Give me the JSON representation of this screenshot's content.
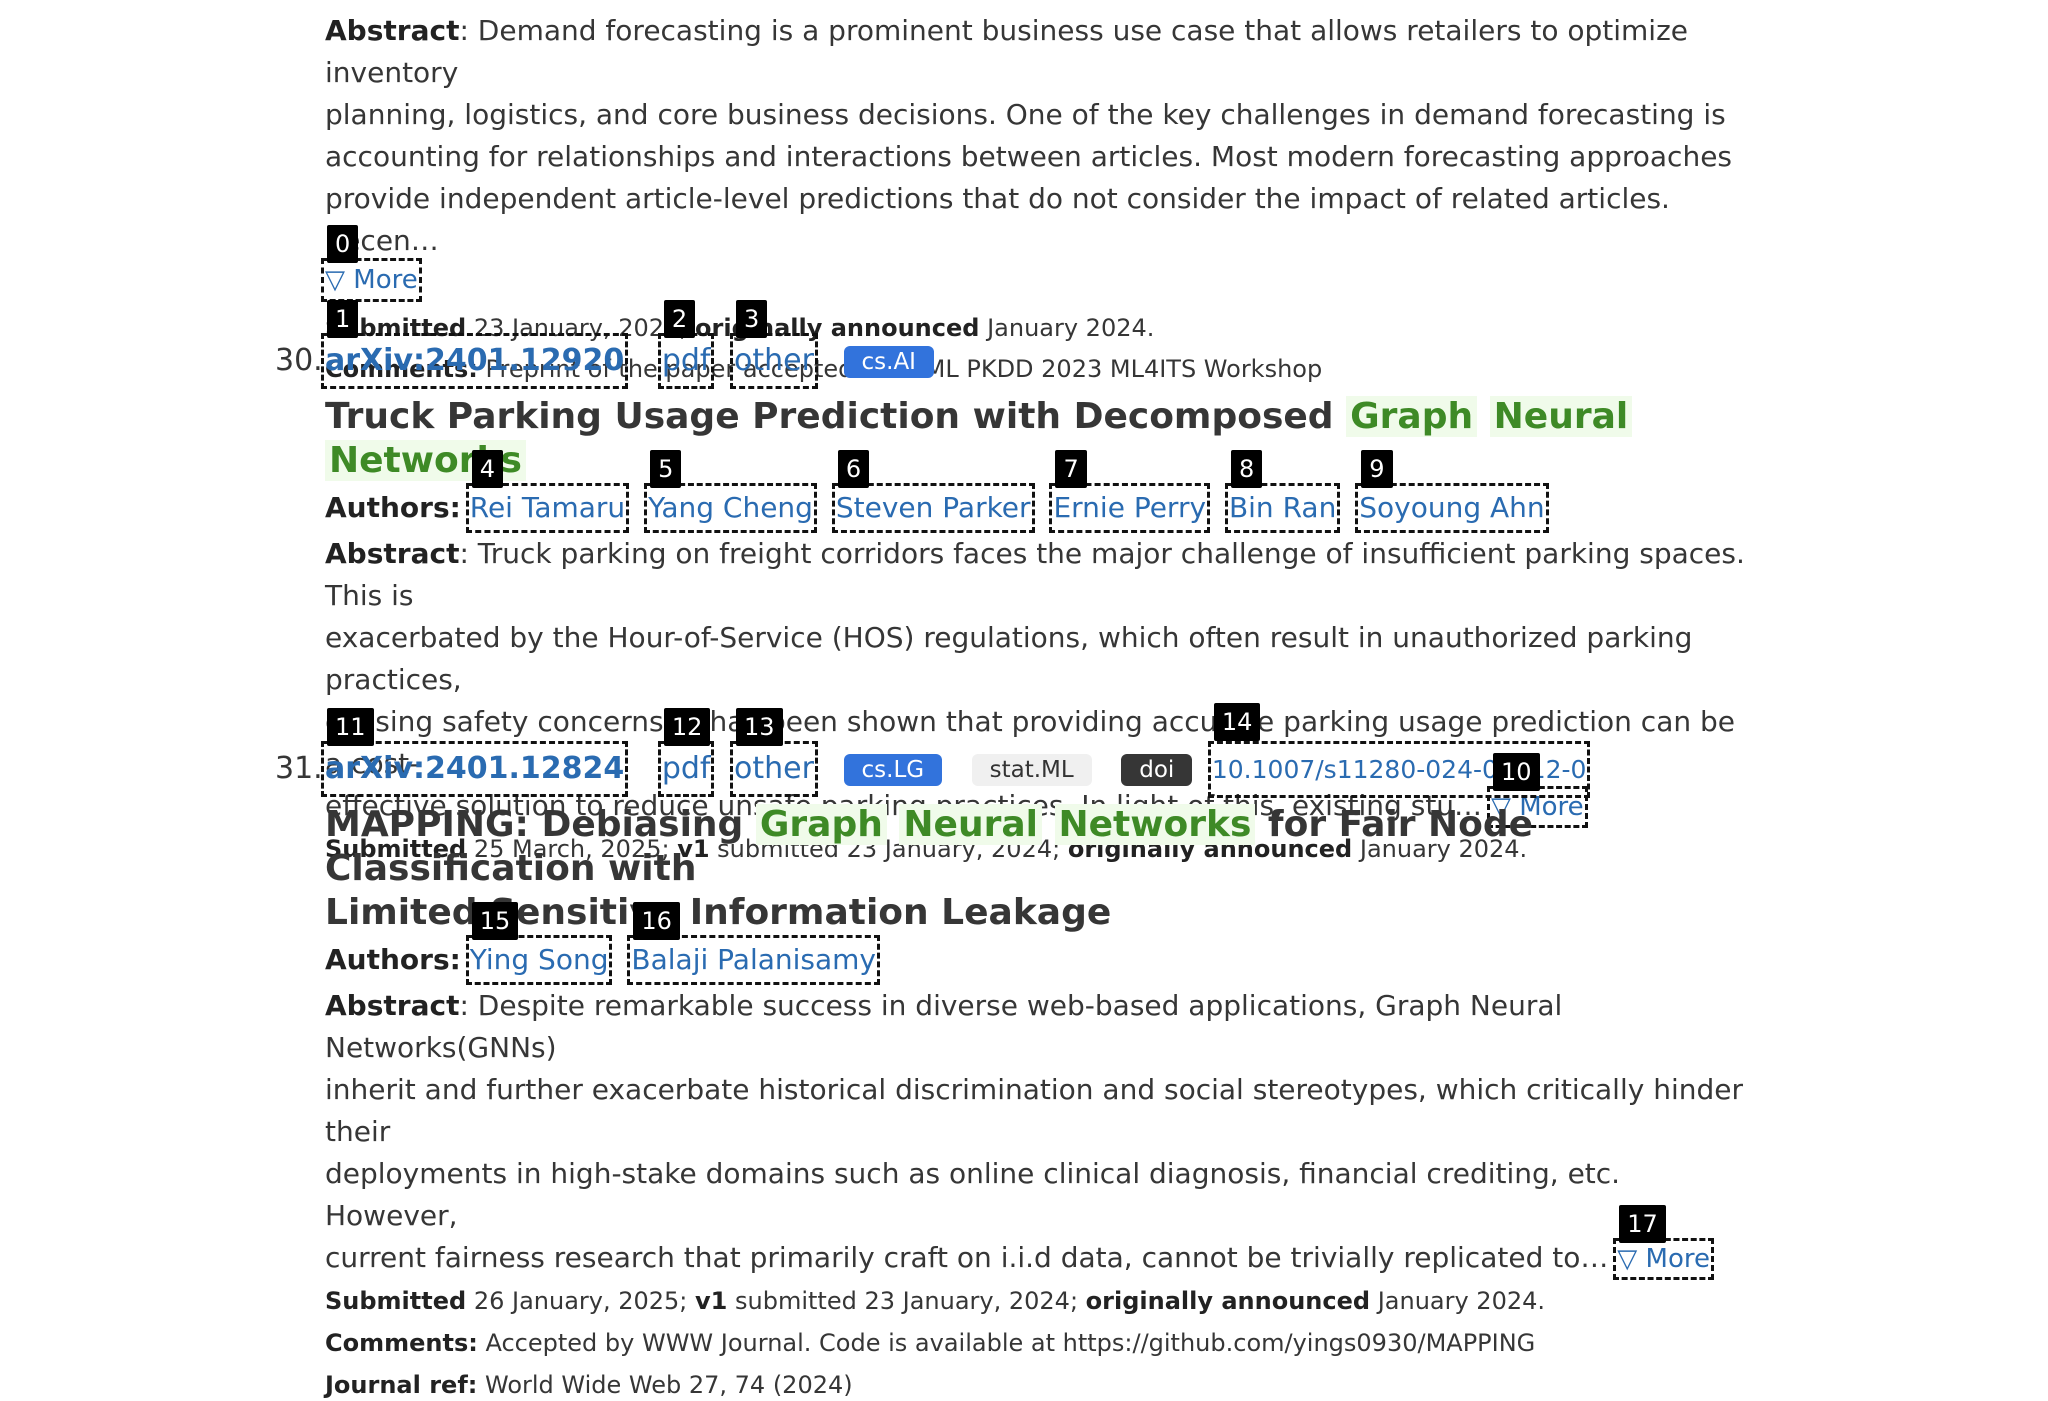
{
  "entry29": {
    "abstract_label": "Abstract",
    "abstract_lines": [
      ": Demand forecasting is a prominent business use case that allows retailers to optimize inventory",
      "planning, logistics, and core business decisions. One of the key challenges in demand forecasting is",
      "accounting for relationships and interactions between articles. Most modern forecasting approaches",
      "provide independent article-level predictions that do not consider the impact of related articles. Recen…"
    ],
    "more_label": "▽ More",
    "submitted_label": "Submitted",
    "submitted_date": " 23 January, 2024; ",
    "announced_label": "originally announced",
    "announced_value": " January 2024.",
    "comments_label": "Comments:",
    "comments_value": " Preprint of the paper accepted to ECML PKDD 2023 ML4ITS Workshop"
  },
  "entry30": {
    "number": "30.",
    "arxiv_id": "arXiv:2401.12920",
    "pdf_label": "pdf",
    "other_label": "other",
    "category": "cs.AI",
    "title_plain": "Truck Parking Usage Prediction with Decomposed ",
    "title_hl1": "Graph",
    "title_hl2": "Neural",
    "title_hl3": "Networks",
    "authors_label": "Authors:",
    "authors": [
      "Rei Tamaru",
      "Yang Cheng",
      "Steven Parker",
      "Ernie Perry",
      "Bin Ran",
      "Soyoung Ahn"
    ],
    "abstract_label": "Abstract",
    "abstract_lines": [
      ": Truck parking on freight corridors faces the major challenge of insufficient parking spaces. This is",
      "exacerbated by the Hour-of-Service (HOS) regulations, which often result in unauthorized parking practices,",
      "causing safety concerns. It has been shown that providing accurate parking usage prediction can be a cost-",
      "effective solution to reduce unsafe parking practices. In light of this, existing stu…"
    ],
    "more_label": "▽ More",
    "submitted_label": "Submitted",
    "submitted_date": " 25 March, 2025; ",
    "v1_label": "v1",
    "v1_value": " submitted 23 January, 2024; ",
    "announced_label": "originally announced",
    "announced_value": " January 2024."
  },
  "entry31": {
    "number": "31.",
    "arxiv_id": "arXiv:2401.12824",
    "pdf_label": "pdf",
    "other_label": "other",
    "category1": "cs.LG",
    "category2": "stat.ML",
    "doi_label": "doi",
    "doi_value": "10.1007/s11280-024-01312-0",
    "title_pre": "MAPPING: Debiasing ",
    "title_hl1": "Graph",
    "title_hl2": "Neural",
    "title_hl3": "Networks",
    "title_post1": " for Fair Node Classification with",
    "title_line2": "Limited Sensitive Information Leakage",
    "authors_label": "Authors:",
    "authors": [
      "Ying Song",
      "Balaji Palanisamy"
    ],
    "abstract_label": "Abstract",
    "abstract_lines": [
      ": Despite remarkable success in diverse web-based applications, Graph Neural Networks(GNNs)",
      "inherit and further exacerbate historical discrimination and social stereotypes, which critically hinder their",
      "deployments in high-stake domains such as online clinical diagnosis, financial crediting, etc. However,",
      "current fairness research that primarily craft on i.i.d data, cannot be trivially replicated to…"
    ],
    "more_label": "▽ More",
    "submitted_label": "Submitted",
    "submitted_date": " 26 January, 2025; ",
    "v1_label": "v1",
    "v1_value": " submitted 23 January, 2024; ",
    "announced_label": "originally announced",
    "announced_value": " January 2024.",
    "comments_label": "Comments:",
    "comments_value": " Accepted by WWW Journal. Code is available at https://github.com/yings0930/MAPPING",
    "journal_label": "Journal ref:",
    "journal_value": " World Wide Web 27, 74 (2024)"
  },
  "markers": [
    "0",
    "1",
    "2",
    "3",
    "4",
    "5",
    "6",
    "7",
    "8",
    "9",
    "10",
    "11",
    "12",
    "13",
    "14",
    "15",
    "16",
    "17"
  ]
}
